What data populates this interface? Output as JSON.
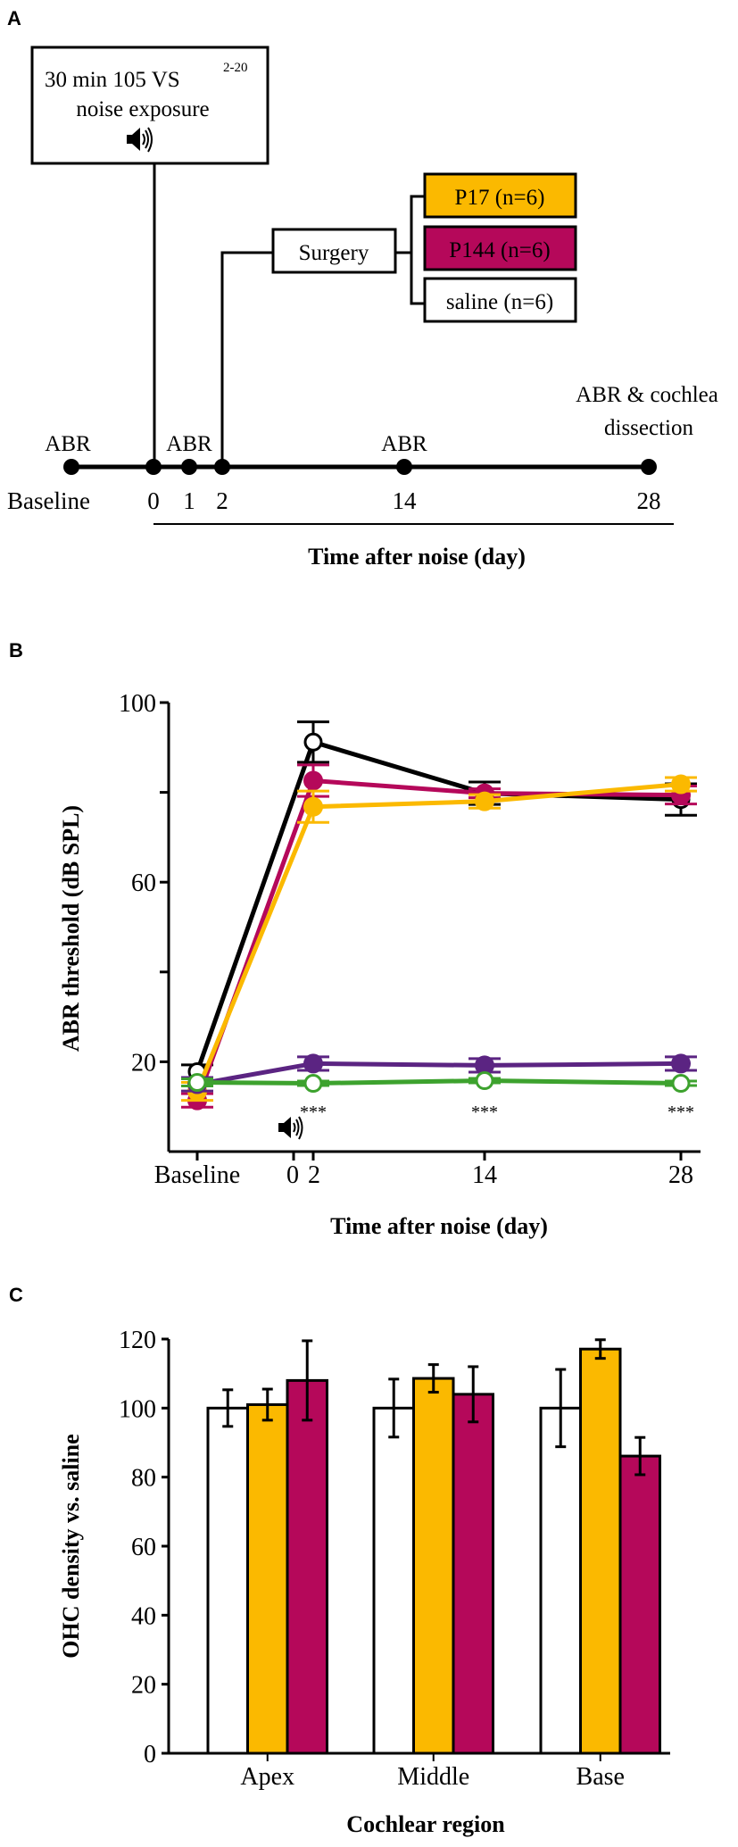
{
  "panel_labels": {
    "a": "A",
    "b": "B",
    "c": "C"
  },
  "colors": {
    "p17": "#FBB900",
    "p144": "#B5085A",
    "saline": "#000000",
    "purple": "#5B2482",
    "green": "#3DA22E"
  },
  "timeline": {
    "noise_box": {
      "line1": "30 min 105 VS",
      "superscript": "2-20",
      "line2": "noise exposure",
      "icon": "speaker-icon"
    },
    "surgery_label": "Surgery",
    "groups": [
      {
        "label": "P17 (n=6)",
        "color": "#FBB900"
      },
      {
        "label": "P144 (n=6)",
        "color": "#B5085A"
      },
      {
        "label": "saline (n=6)",
        "color": "#FFFFFF"
      }
    ],
    "event_labels": {
      "abr1": "ABR",
      "abr2": "ABR",
      "abr3": "ABR",
      "final_line1": "ABR & cochlea",
      "final_line2": "dissection"
    },
    "ticks": [
      "Baseline",
      "0",
      "1",
      "2",
      "14",
      "28"
    ],
    "axis_title": "Time after noise (day)"
  },
  "chart_data": [
    {
      "type": "line",
      "title": "",
      "xlabel": "Time after noise (day)",
      "ylabel": "ABR threshold (dB SPL)",
      "x": [
        "Baseline",
        "0",
        "2",
        "14",
        "28"
      ],
      "x_tick_labels": [
        "Baseline",
        "0",
        "2",
        "14",
        "28"
      ],
      "ylim": [
        0,
        100
      ],
      "y_ticks": [
        20,
        40,
        60,
        80,
        100
      ],
      "y_tick_labels": [
        "20",
        "60",
        "100"
      ],
      "noise_marker": {
        "at": "0",
        "icon": "speaker-icon"
      },
      "series": [
        {
          "color": "#000000",
          "marker": "open",
          "x": [
            "Baseline",
            "2",
            "14",
            "28"
          ],
          "values": [
            17.8,
            91.2,
            79.8,
            78.4
          ],
          "errors": [
            1.5,
            4.5,
            2.5,
            3.5
          ]
        },
        {
          "color": "#B5085A",
          "marker": "filled",
          "x": [
            "Baseline",
            "2",
            "14",
            "28"
          ],
          "values": [
            11.4,
            82.6,
            79.8,
            79.4
          ],
          "errors": [
            1.5,
            3.5,
            1.0,
            2.0
          ]
        },
        {
          "color": "#FBB900",
          "marker": "filled",
          "x": [
            "Baseline",
            "2",
            "14",
            "28"
          ],
          "values": [
            13.4,
            76.8,
            78.0,
            81.8
          ],
          "errors": [
            2.0,
            3.5,
            1.5,
            1.5
          ]
        },
        {
          "color": "#5B2482",
          "marker": "filled",
          "x": [
            "Baseline",
            "2",
            "14",
            "28"
          ],
          "values": [
            15.0,
            19.6,
            19.2,
            19.6
          ],
          "errors": [
            1.5,
            1.5,
            1.5,
            1.5
          ]
        },
        {
          "color": "#3DA22E",
          "marker": "open",
          "x": [
            "Baseline",
            "2",
            "14",
            "28"
          ],
          "values": [
            15.4,
            15.2,
            15.8,
            15.2
          ],
          "errors": [
            0.8,
            0.5,
            0.5,
            0.5
          ]
        }
      ],
      "annotations": [
        {
          "x": "2",
          "text": "***"
        },
        {
          "x": "14",
          "text": "***"
        },
        {
          "x": "28",
          "text": "***"
        }
      ]
    },
    {
      "type": "bar",
      "title": "",
      "xlabel": "Cochlear region",
      "ylabel": "OHC density vs. saline",
      "categories": [
        "Apex",
        "Middle",
        "Base"
      ],
      "ylim": [
        0,
        120
      ],
      "y_ticks": [
        "0",
        "20",
        "40",
        "60",
        "80",
        "100",
        "120"
      ],
      "series": [
        {
          "color": "#FFFFFF",
          "values": [
            100,
            100,
            100
          ],
          "errors": [
            5.3,
            8.4,
            11.2
          ]
        },
        {
          "color": "#FBB900",
          "values": [
            101,
            108.6,
            117.1
          ],
          "errors": [
            4.5,
            4.0,
            2.7
          ]
        },
        {
          "color": "#B5085A",
          "values": [
            108,
            104,
            86.1
          ],
          "errors": [
            11.5,
            8.0,
            5.4
          ]
        }
      ]
    }
  ]
}
